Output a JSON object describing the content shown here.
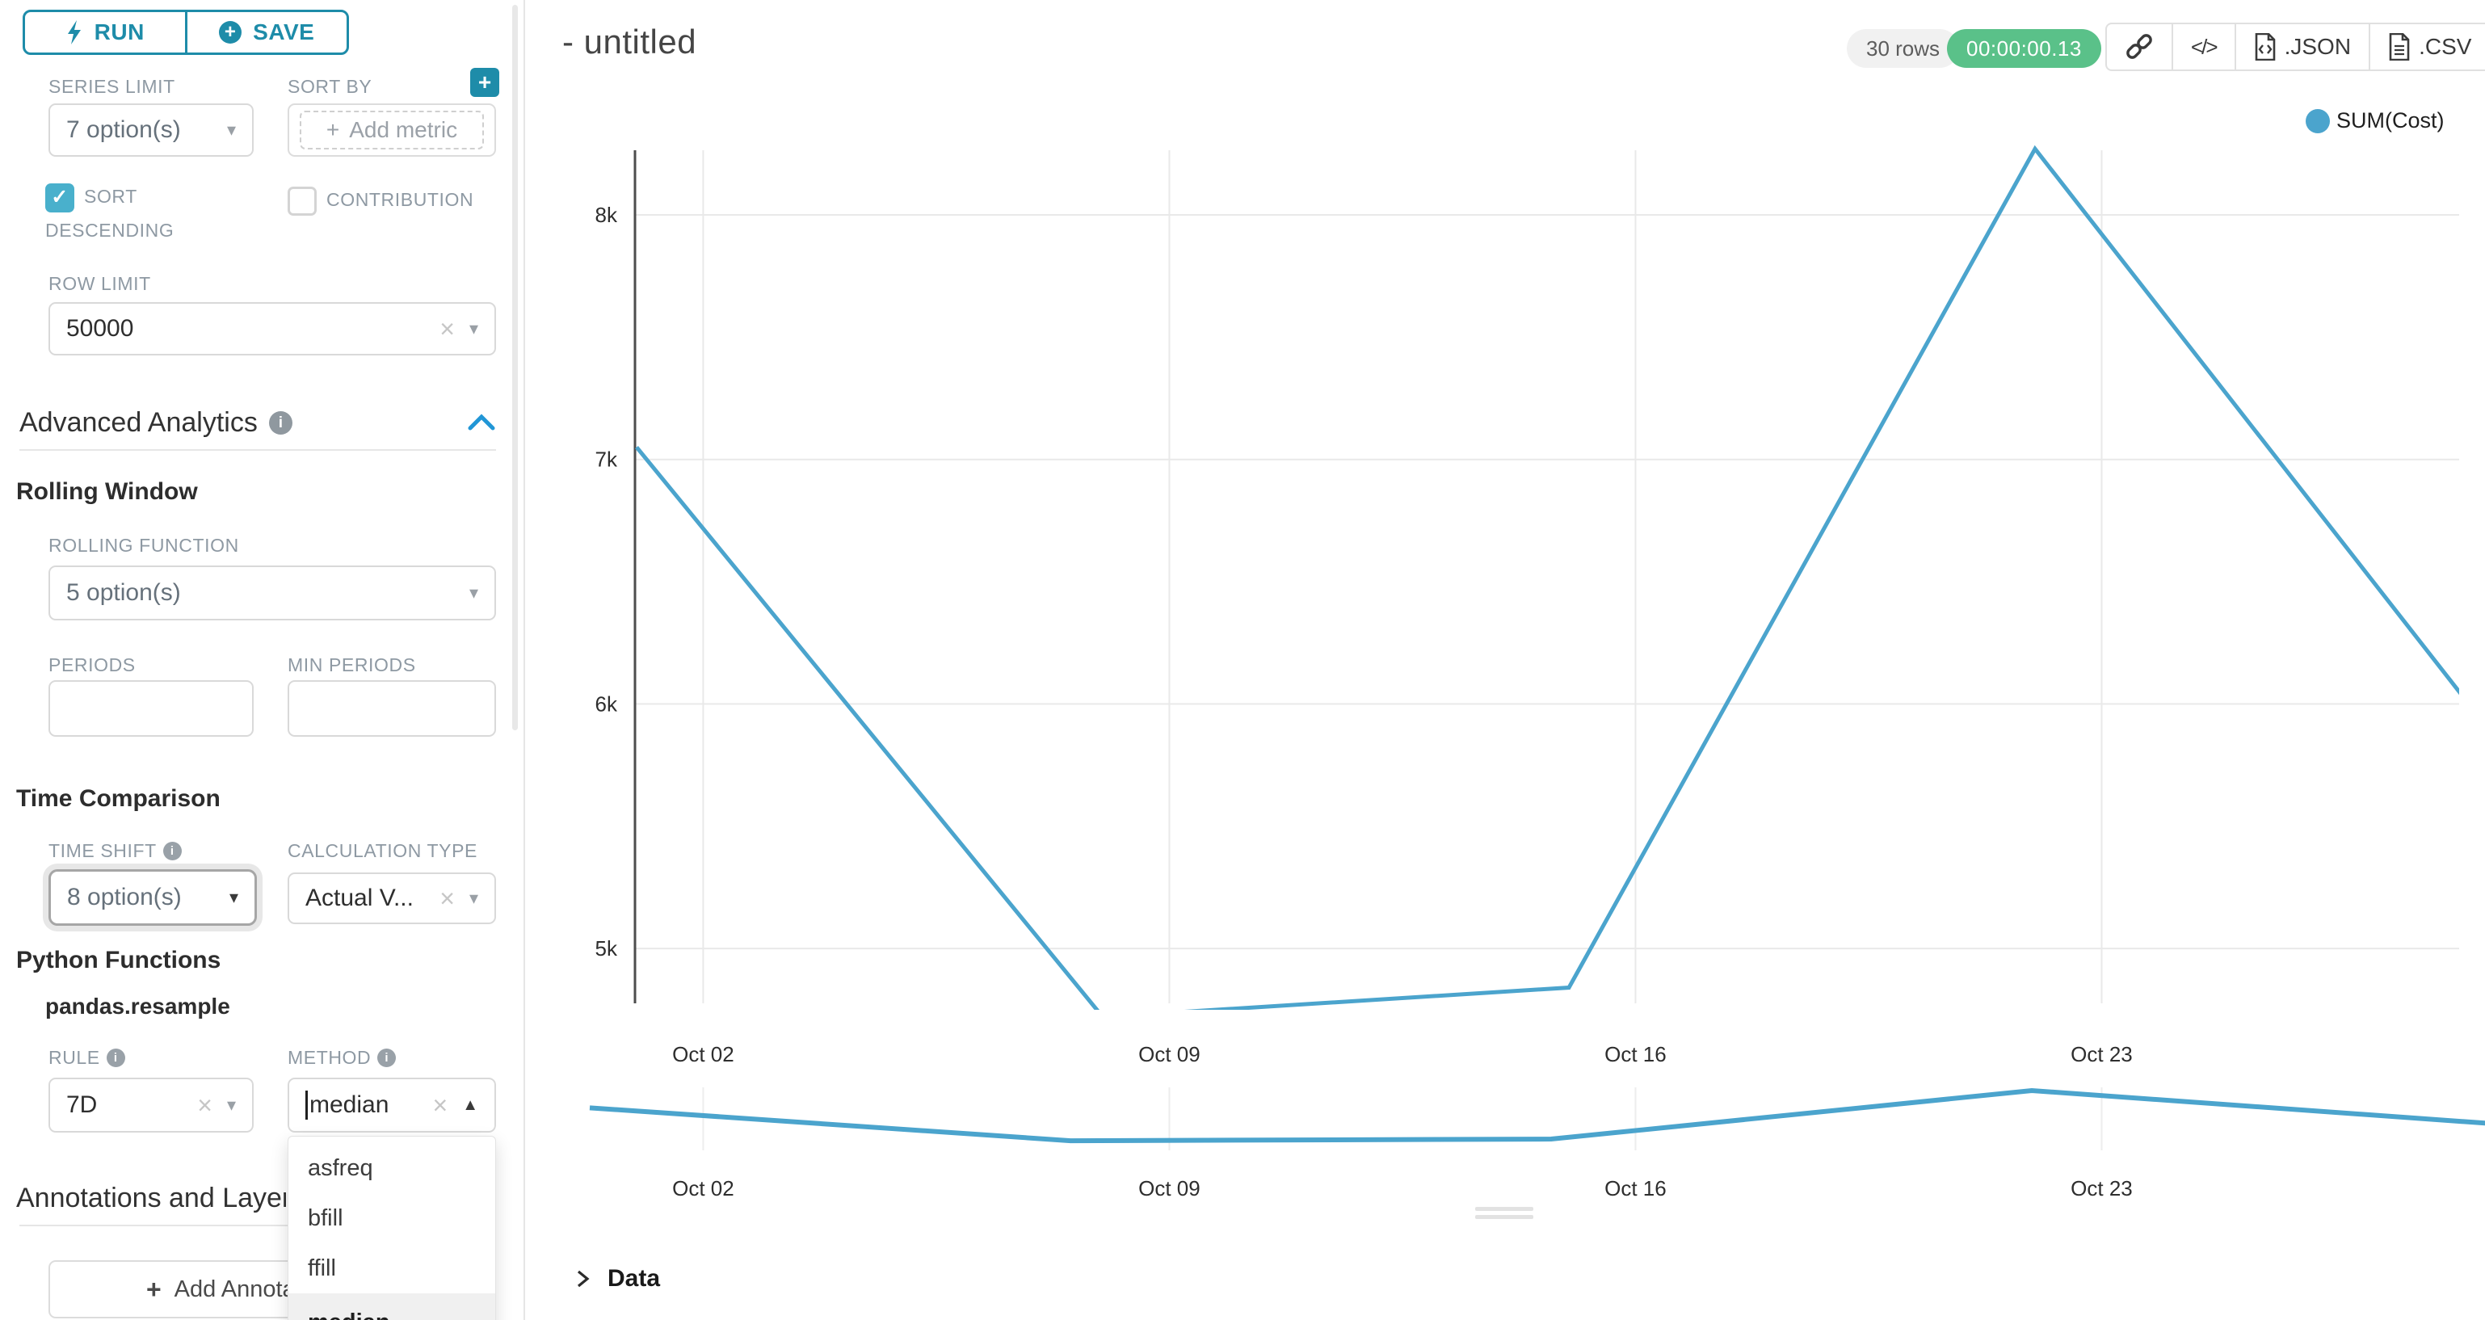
{
  "icons": {
    "plus": "+",
    "clear": "×",
    "caret_down": "▾",
    "caret_up": "▲",
    "check": "✓",
    "info": "i",
    "code": "</>"
  },
  "panel": {
    "run": "RUN",
    "save": "SAVE",
    "series_limit": {
      "label": "SERIES LIMIT",
      "value": "7 option(s)"
    },
    "sort_by": {
      "label": "SORT BY",
      "placeholder": "Add metric"
    },
    "sort_descending": {
      "label": "SORT DESCENDING",
      "checked": true
    },
    "contribution": {
      "label": "CONTRIBUTION",
      "checked": false
    },
    "row_limit": {
      "label": "ROW LIMIT",
      "value": "50000"
    },
    "advanced_analytics": {
      "title": "Advanced Analytics"
    },
    "rolling_window": {
      "title": "Rolling Window",
      "function_label": "ROLLING FUNCTION",
      "function_value": "5 option(s)",
      "periods_label": "PERIODS",
      "periods_value": "",
      "min_periods_label": "MIN PERIODS",
      "min_periods_value": ""
    },
    "time_comparison": {
      "title": "Time Comparison",
      "time_shift_label": "TIME SHIFT",
      "time_shift_value": "8 option(s)",
      "calculation_type_label": "CALCULATION TYPE",
      "calculation_type_value": "Actual V..."
    },
    "python_functions": {
      "title": "Python Functions",
      "subtitle": "pandas.resample",
      "rule_label": "RULE",
      "rule_value": "7D",
      "method_label": "METHOD",
      "method_value": "median",
      "method_options": [
        "asfreq",
        "bfill",
        "ffill",
        "median"
      ],
      "method_selected": "median"
    },
    "annotations": {
      "title": "Annotations and Layers",
      "add_button": "Add Annotation Layer"
    }
  },
  "header": {
    "title": "- untitled",
    "rows_badge": "30 rows",
    "timer": "00:00:00.13",
    "export_json": ".JSON",
    "export_csv": ".CSV"
  },
  "data_panel": {
    "title": "Data"
  },
  "chart_data": {
    "type": "line",
    "title": "",
    "legend_position": "top-right",
    "grid": true,
    "x_tick_labels": [
      "Oct 02",
      "Oct 09",
      "Oct 16",
      "Oct 23"
    ],
    "y_tick_labels": [
      "8k",
      "7k",
      "6k",
      "5k"
    ],
    "y_tick_values": [
      8000,
      7000,
      6000,
      5000
    ],
    "ylim": [
      4600,
      8500
    ],
    "series": [
      {
        "name": "SUM(Cost)",
        "color": "#4BA4CD",
        "x": [
          "Oct 01",
          "Oct 08",
          "Oct 15",
          "Oct 22",
          "Oct 29"
        ],
        "values": [
          7050,
          4720,
          4840,
          8270,
          5830
        ]
      }
    ],
    "range_selector": {
      "shown": true,
      "x_tick_labels": [
        "Oct 02",
        "Oct 09",
        "Oct 16",
        "Oct 23"
      ]
    }
  }
}
